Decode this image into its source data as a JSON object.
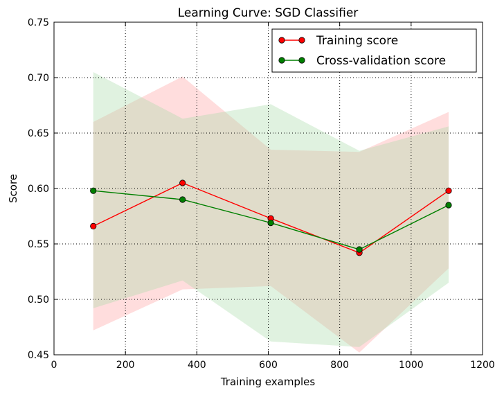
{
  "chart_data": {
    "type": "line",
    "title": "Learning Curve: SGD Classifier",
    "xlabel": "Training examples",
    "ylabel": "Score",
    "xlim": [
      0,
      1200
    ],
    "ylim": [
      0.45,
      0.75
    ],
    "x_ticks": [
      0,
      200,
      400,
      600,
      800,
      1000,
      1200
    ],
    "y_ticks": [
      0.45,
      0.5,
      0.55,
      0.6,
      0.65,
      0.7,
      0.75
    ],
    "x_tick_labels": [
      "0",
      "200",
      "400",
      "600",
      "800",
      "1000",
      "1200"
    ],
    "y_tick_labels": [
      "0.45",
      "0.50",
      "0.55",
      "0.60",
      "0.65",
      "0.70",
      "0.75"
    ],
    "grid": true,
    "legend_position": "top-right",
    "x": [
      110,
      360,
      607,
      855,
      1105
    ],
    "series": [
      {
        "name": "Training score",
        "color": "#ff0000",
        "band_color": "#ffb3b3",
        "values": [
          0.566,
          0.605,
          0.573,
          0.542,
          0.598
        ],
        "band_upper": [
          0.66,
          0.701,
          0.635,
          0.633,
          0.669
        ],
        "band_lower": [
          0.472,
          0.509,
          0.512,
          0.452,
          0.528
        ]
      },
      {
        "name": "Cross-validation score",
        "color": "#008000",
        "band_color": "#a6d9a6",
        "values": [
          0.598,
          0.59,
          0.569,
          0.545,
          0.585
        ],
        "band_upper": [
          0.705,
          0.663,
          0.676,
          0.634,
          0.656
        ],
        "band_lower": [
          0.492,
          0.517,
          0.462,
          0.457,
          0.515
        ]
      }
    ]
  }
}
